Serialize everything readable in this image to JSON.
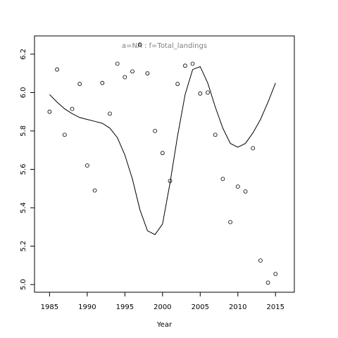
{
  "chart_data": {
    "type": "scatter",
    "title": "a=NA  :  f=Total_landings",
    "xlabel": "Year",
    "ylabel": "",
    "xlim": [
      1983,
      2017.5
    ],
    "ylim": [
      4.96,
      6.295
    ],
    "x_ticks": [
      1985,
      1990,
      1995,
      2000,
      2005,
      2010,
      2015
    ],
    "y_ticks": [
      5.0,
      5.2,
      5.4,
      5.6,
      5.8,
      6.0,
      6.2
    ],
    "x_tick_labels": [
      "1985",
      "1990",
      "1995",
      "2000",
      "2005",
      "2010",
      "2015"
    ],
    "y_tick_labels": [
      "5.0",
      "5.2",
      "5.4",
      "5.6",
      "5.8",
      "6.0",
      "6.2"
    ],
    "grid": false,
    "series": [
      {
        "kind": "points",
        "marker": "open-circle",
        "x": [
          1985,
          1986,
          1987,
          1988,
          1989,
          1990,
          1991,
          1992,
          1993,
          1994,
          1995,
          1996,
          1997,
          1998,
          1999,
          2000,
          2001,
          2002,
          2003,
          2004,
          2005,
          2006,
          2007,
          2008,
          2009,
          2010,
          2011,
          2012,
          2013,
          2014,
          2015
        ],
        "y": [
          5.9,
          6.12,
          5.78,
          5.915,
          6.045,
          5.62,
          5.49,
          6.05,
          5.89,
          6.15,
          6.08,
          6.11,
          6.25,
          6.1,
          5.8,
          5.685,
          5.54,
          6.045,
          6.14,
          6.15,
          5.995,
          6.0,
          5.78,
          5.55,
          5.325,
          5.51,
          5.485,
          5.71,
          5.125,
          5.01,
          5.055
        ]
      },
      {
        "kind": "line",
        "x": [
          1985,
          1986,
          1987,
          1988,
          1989,
          1990,
          1991,
          1992,
          1993,
          1994,
          1995,
          1996,
          1997,
          1998,
          1999,
          2000,
          2001,
          2002,
          2003,
          2004,
          2005,
          2006,
          2007,
          2008,
          2009,
          2010,
          2011,
          2012,
          2013,
          2014,
          2015
        ],
        "y": [
          5.99,
          5.95,
          5.915,
          5.89,
          5.87,
          5.86,
          5.85,
          5.84,
          5.815,
          5.765,
          5.675,
          5.55,
          5.39,
          5.28,
          5.26,
          5.315,
          5.53,
          5.775,
          5.99,
          6.12,
          6.135,
          6.05,
          5.925,
          5.815,
          5.735,
          5.715,
          5.735,
          5.79,
          5.86,
          5.95,
          6.05
        ]
      }
    ]
  }
}
